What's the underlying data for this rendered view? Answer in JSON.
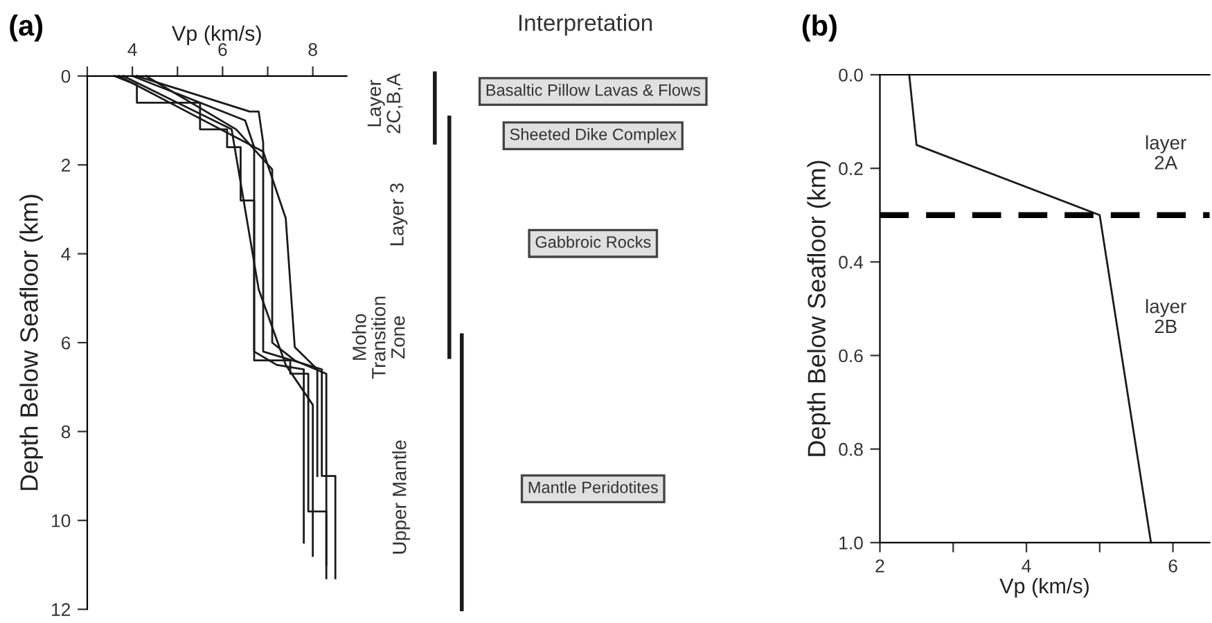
{
  "chart_data": [
    {
      "type": "line",
      "title": "(a)",
      "xlabel": "Vp (km/s)",
      "ylabel": "Depth Below Seafloor (km)",
      "xlim": [
        3,
        8.75
      ],
      "xticks": [
        {
          "value": 3,
          "label": null
        },
        4,
        {
          "value": 5,
          "label": null
        },
        6,
        {
          "value": 7,
          "label": null
        },
        8
      ],
      "ylim": [
        12,
        0
      ],
      "yticks": [
        0,
        2,
        4,
        6,
        8,
        10,
        12
      ],
      "marker": "none",
      "line_style": "solid",
      "series": [
        {
          "color": "#1a1a1a",
          "x": [
            3.6,
            4.1,
            4.1,
            5.5,
            5.5,
            6.1,
            6.1,
            6.4,
            6.4,
            6.7,
            6.7,
            7.5,
            7.5,
            7.9,
            7.9,
            8.3,
            8.3
          ],
          "values": [
            0,
            0.2,
            0.6,
            0.6,
            1.2,
            1.2,
            1.6,
            1.6,
            2.8,
            2.8,
            6.4,
            6.4,
            6.7,
            6.7,
            9.8,
            9.8,
            11.3
          ]
        },
        {
          "color": "#1a1a1a",
          "x": [
            4.1,
            6.6,
            6.8,
            6.9,
            6.9,
            8.2,
            8.2,
            8.5,
            8.5
          ],
          "values": [
            0,
            0.8,
            0.8,
            1.5,
            6.2,
            6.6,
            9.0,
            9.0,
            11.3
          ]
        },
        {
          "color": "#1a1a1a",
          "x": [
            4.3,
            6.3,
            7.1,
            7.1,
            7.6,
            8.3,
            8.3
          ],
          "values": [
            0,
            1.2,
            2.1,
            6.0,
            6.4,
            6.7,
            11.0
          ]
        },
        {
          "color": "#1a1a1a",
          "x": [
            3.7,
            6.9,
            7.4,
            7.6,
            8.1,
            8.1
          ],
          "values": [
            0,
            1.7,
            3.2,
            6.1,
            6.6,
            9.0
          ]
        },
        {
          "color": "#1a1a1a",
          "x": [
            3.8,
            6.2,
            6.8,
            7.4,
            8.0,
            8.0
          ],
          "values": [
            0,
            1.2,
            4.8,
            6.5,
            7.4,
            10.8
          ]
        },
        {
          "color": "#1a1a1a",
          "x": [
            4.0,
            6.5,
            6.7,
            6.7,
            7.2,
            7.8,
            7.8
          ],
          "values": [
            0,
            1.0,
            1.6,
            6.2,
            6.5,
            6.6,
            10.5
          ]
        }
      ],
      "annotations": [
        "Interpretation",
        "Layer\n2C,B,A",
        "Layer 3",
        "Moho\nTransition\nZone",
        "Upper Mantle",
        "Basaltic Pillow Lavas & Flows",
        "Sheeted Dike Complex",
        "Gabbroic Rocks",
        "Mantle Peridotites"
      ]
    },
    {
      "type": "line",
      "title": "(b)",
      "xlabel": "Vp (km/s)",
      "ylabel": "Depth Below Seafloor (km)",
      "xlim": [
        2,
        6.5
      ],
      "xticks": [
        2,
        {
          "value": 3,
          "label": null
        },
        4,
        {
          "value": 5,
          "label": null
        },
        6
      ],
      "ylim": [
        1.0,
        0.0
      ],
      "yticks": [
        {
          "value": 0,
          "label": "0.0"
        },
        0.2,
        0.4,
        0.6,
        0.8,
        {
          "value": 1,
          "label": "1.0"
        }
      ],
      "marker": "none",
      "line_style": "solid",
      "series": [
        {
          "color": "#1a1a1a",
          "x": [
            2.4,
            2.5,
            5.0,
            5.7
          ],
          "values": [
            0,
            0.15,
            0.3,
            1.0
          ]
        }
      ],
      "ref_lines": [
        {
          "axis": "y",
          "value": 0.3,
          "color": "#000000",
          "line_style": "dashed"
        }
      ],
      "annotations": [
        "layer\n2A",
        "layer\n2B"
      ]
    }
  ]
}
